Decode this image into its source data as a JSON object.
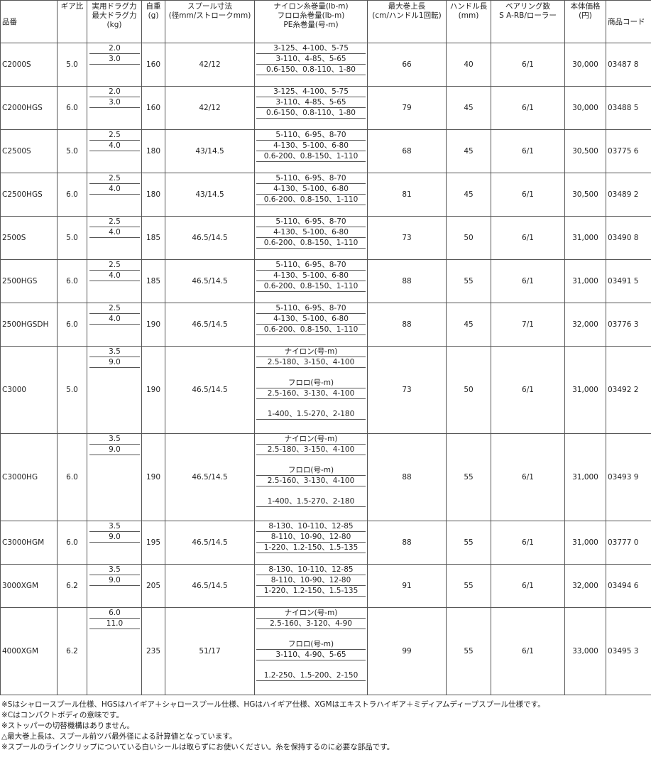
{
  "table": {
    "header": [
      "品番",
      "ギア比",
      "実用ドラグ力\n最大ドラグ力\n(kg)",
      "自重\n(g)",
      "スプール寸法\n(径mm/ストロークmm)",
      "ナイロン糸巻量(lb-m)\nフロロ糸巻量(lb-m)\nPE糸巻量(号-m)",
      "最大巻上長\n(cm/ハンドル1回転)",
      "ハンドル長\n(mm)",
      "ベアリング数\nS A-RB/ローラー",
      "本体価格\n(円)",
      "商品コード"
    ],
    "rows": [
      {
        "model": "C2000S",
        "gear": "5.0",
        "drag": [
          "2.0",
          "3.0"
        ],
        "weight": "160",
        "spool": "42/12",
        "lines": [
          "3-125、4-100、5-75",
          "3-110、4-85、5-65",
          "0.6-150、0.8-110、1-80"
        ],
        "max": "66",
        "handle": "40",
        "bearing": "6/1",
        "price": "30,000",
        "code": "03487 8"
      },
      {
        "model": "C2000HGS",
        "gear": "6.0",
        "drag": [
          "2.0",
          "3.0"
        ],
        "weight": "160",
        "spool": "42/12",
        "lines": [
          "3-125、4-100、5-75",
          "3-110、4-85、5-65",
          "0.6-150、0.8-110、1-80"
        ],
        "max": "79",
        "handle": "45",
        "bearing": "6/1",
        "price": "30,000",
        "code": "03488 5"
      },
      {
        "model": "C2500S",
        "gear": "5.0",
        "drag": [
          "2.5",
          "4.0"
        ],
        "weight": "180",
        "spool": "43/14.5",
        "lines": [
          "5-110、6-95、8-70",
          "4-130、5-100、6-80",
          "0.6-200、0.8-150、1-110"
        ],
        "max": "68",
        "handle": "45",
        "bearing": "6/1",
        "price": "30,500",
        "code": "03775 6"
      },
      {
        "model": "C2500HGS",
        "gear": "6.0",
        "drag": [
          "2.5",
          "4.0"
        ],
        "weight": "180",
        "spool": "43/14.5",
        "lines": [
          "5-110、6-95、8-70",
          "4-130、5-100、6-80",
          "0.6-200、0.8-150、1-110"
        ],
        "max": "81",
        "handle": "45",
        "bearing": "6/1",
        "price": "30,500",
        "code": "03489 2"
      },
      {
        "model": "2500S",
        "gear": "5.0",
        "drag": [
          "2.5",
          "4.0"
        ],
        "weight": "185",
        "spool": "46.5/14.5",
        "lines": [
          "5-110、6-95、8-70",
          "4-130、5-100、6-80",
          "0.6-200、0.8-150、1-110"
        ],
        "max": "73",
        "handle": "50",
        "bearing": "6/1",
        "price": "31,000",
        "code": "03490 8"
      },
      {
        "model": "2500HGS",
        "gear": "6.0",
        "drag": [
          "2.5",
          "4.0"
        ],
        "weight": "185",
        "spool": "46.5/14.5",
        "lines": [
          "5-110、6-95、8-70",
          "4-130、5-100、6-80",
          "0.6-200、0.8-150、1-110"
        ],
        "max": "88",
        "handle": "55",
        "bearing": "6/1",
        "price": "31,000",
        "code": "03491 5"
      },
      {
        "model": "2500HGSDH",
        "gear": "6.0",
        "drag": [
          "2.5",
          "4.0"
        ],
        "weight": "190",
        "spool": "46.5/14.5",
        "lines": [
          "5-110、6-95、8-70",
          "4-130、5-100、6-80",
          "0.6-200、0.8-150、1-110"
        ],
        "max": "88",
        "handle": "45",
        "bearing": "7/1",
        "price": "32,000",
        "code": "03776 3"
      },
      {
        "model": "C3000",
        "gear": "5.0",
        "drag": [
          "3.5",
          "9.0"
        ],
        "weight": "190",
        "spool": "46.5/14.5",
        "lines": [
          "ナイロン(号-m)",
          "2.5-180、3-150、4-100",
          "フロロ(号-m)",
          "2.5-160、3-130、4-100",
          "1-400、1.5-270、2-180"
        ],
        "max": "73",
        "handle": "50",
        "bearing": "6/1",
        "price": "31,000",
        "code": "03492 2"
      },
      {
        "model": "C3000HG",
        "gear": "6.0",
        "drag": [
          "3.5",
          "9.0"
        ],
        "weight": "190",
        "spool": "46.5/14.5",
        "lines": [
          "ナイロン(号-m)",
          "2.5-180、3-150、4-100",
          "フロロ(号-m)",
          "2.5-160、3-130、4-100",
          "1-400、1.5-270、2-180"
        ],
        "max": "88",
        "handle": "55",
        "bearing": "6/1",
        "price": "31,000",
        "code": "03493 9"
      },
      {
        "model": "C3000HGM",
        "gear": "6.0",
        "drag": [
          "3.5",
          "9.0"
        ],
        "weight": "195",
        "spool": "46.5/14.5",
        "lines": [
          "8-130、10-110、12-85",
          "8-110、10-90、12-80",
          "1-220、1.2-150、1.5-135"
        ],
        "max": "88",
        "handle": "55",
        "bearing": "6/1",
        "price": "31,000",
        "code": "03777 0"
      },
      {
        "model": "3000XGM",
        "gear": "6.2",
        "drag": [
          "3.5",
          "9.0"
        ],
        "weight": "205",
        "spool": "46.5/14.5",
        "lines": [
          "8-130、10-110、12-85",
          "8-110、10-90、12-80",
          "1-220、1.2-150、1.5-135"
        ],
        "max": "91",
        "handle": "55",
        "bearing": "6/1",
        "price": "32,000",
        "code": "03494 6"
      },
      {
        "model": "4000XGM",
        "gear": "6.2",
        "drag": [
          "6.0",
          "11.0"
        ],
        "weight": "235",
        "spool": "51/17",
        "lines": [
          "ナイロン(号-m)",
          "2.5-160、3-120、4-90",
          "フロロ(号-m)",
          "3-110、4-90、5-65",
          "1.2-250、1.5-200、2-150"
        ],
        "max": "99",
        "handle": "55",
        "bearing": "6/1",
        "price": "33,000",
        "code": "03495 3"
      }
    ]
  },
  "notes": [
    "※Sはシャロースプール仕様、HGSはハイギア＋シャロースプール仕様、HGはハイギア仕様、XGMはエキストラハイギア＋ミディアムディープスプール仕様です。",
    "※Cはコンパクトボディの意味です。",
    "※ストッパーの切替機構はありません。",
    "△最大巻上長は、スプール前ツバ最外径による計算値となっています。",
    "※スプールのラインクリップについている白いシールは取らずにお使いください。糸を保持するのに必要な部品です。"
  ]
}
